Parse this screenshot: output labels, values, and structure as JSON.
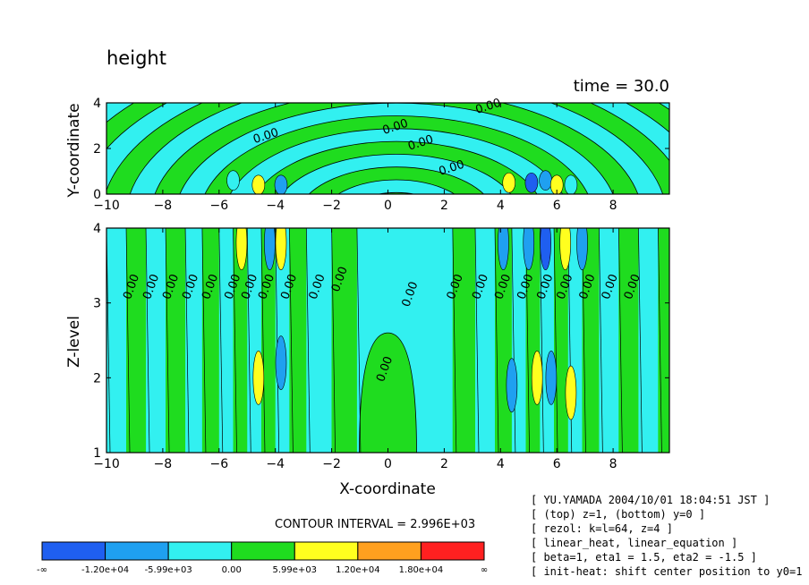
{
  "title": "height",
  "time_label": "time = 30.0",
  "chart_data": [
    {
      "type": "heatmap",
      "panel": "top",
      "description_role": "horizontal section at z=1",
      "xlabel": "",
      "ylabel": "Y-coordinate",
      "xlim": [
        -10,
        10
      ],
      "ylim": [
        0,
        4
      ],
      "x_ticks": [
        -10,
        -8,
        -6,
        -4,
        -2,
        0,
        2,
        4,
        6,
        8
      ],
      "y_ticks": [
        0,
        2,
        4
      ],
      "contour_labels": [
        {
          "text": "0.00",
          "x": -4.3,
          "y": 2.4
        },
        {
          "text": "0.00",
          "x": 0.3,
          "y": 2.8
        },
        {
          "text": "0.00",
          "x": 1.2,
          "y": 2.1
        },
        {
          "text": "0.00",
          "x": 2.3,
          "y": 1.0
        },
        {
          "text": "0.00",
          "x": 3.6,
          "y": 3.7
        }
      ]
    },
    {
      "type": "heatmap",
      "panel": "bottom",
      "description_role": "vertical section at y=0",
      "xlabel": "X-coordinate",
      "ylabel": "Z-level",
      "xlim": [
        -10,
        10
      ],
      "ylim": [
        1,
        4
      ],
      "x_ticks": [
        -10,
        -8,
        -6,
        -4,
        -2,
        0,
        2,
        4,
        6,
        8
      ],
      "y_ticks": [
        1,
        2,
        3,
        4
      ],
      "contour_labels": [
        {
          "text": "0.00",
          "x": -9.0,
          "y": 3.2
        },
        {
          "text": "0.00",
          "x": -8.3,
          "y": 3.2
        },
        {
          "text": "0.00",
          "x": -7.6,
          "y": 3.2
        },
        {
          "text": "0.00",
          "x": -6.9,
          "y": 3.2
        },
        {
          "text": "0.00",
          "x": -6.2,
          "y": 3.2
        },
        {
          "text": "0.00",
          "x": -5.4,
          "y": 3.2
        },
        {
          "text": "0.00",
          "x": -4.8,
          "y": 3.2
        },
        {
          "text": "0.00",
          "x": -4.2,
          "y": 3.2
        },
        {
          "text": "0.00",
          "x": -3.4,
          "y": 3.2
        },
        {
          "text": "0.00",
          "x": -2.4,
          "y": 3.2
        },
        {
          "text": "0.00",
          "x": -1.6,
          "y": 3.3
        },
        {
          "text": "0.00",
          "x": 0.9,
          "y": 3.1
        },
        {
          "text": "0.00",
          "x": 0.0,
          "y": 2.1
        },
        {
          "text": "0.00",
          "x": 2.5,
          "y": 3.2
        },
        {
          "text": "0.00",
          "x": 3.4,
          "y": 3.2
        },
        {
          "text": "0.00",
          "x": 4.2,
          "y": 3.2
        },
        {
          "text": "0.00",
          "x": 5.0,
          "y": 3.2
        },
        {
          "text": "0.00",
          "x": 5.7,
          "y": 3.2
        },
        {
          "text": "0.00",
          "x": 6.4,
          "y": 3.2
        },
        {
          "text": "0.00",
          "x": 7.2,
          "y": 3.2
        },
        {
          "text": "0.00",
          "x": 8.0,
          "y": 3.2
        },
        {
          "text": "0.00",
          "x": 8.8,
          "y": 3.2
        }
      ]
    }
  ],
  "contour_interval": "CONTOUR INTERVAL = 2.996E+03",
  "colorbar": {
    "colors": [
      "#1f5ff0",
      "#1fa0f0",
      "#32f0f0",
      "#1fdc1f",
      "#ffff1f",
      "#ffa01f",
      "#ff2020"
    ],
    "labels": [
      "-∞",
      "-1.20e+04",
      "-5.99e+03",
      "0.00",
      "5.99e+03",
      "1.20e+04",
      "1.80e+04",
      "∞"
    ]
  },
  "info_lines": [
    "[ YU.YAMADA 2004/10/01 18:04:51 JST ]",
    "[ (top) z=1, (bottom) y=0 ]",
    "[ rezol: k=l=64, z=4 ]",
    "[ linear_heat, linear_equation ]",
    "[ beta=1, eta1 = 1.5, eta2 = -1.5 ]",
    "[ init-heat: shift center position to y0=1 ]"
  ]
}
